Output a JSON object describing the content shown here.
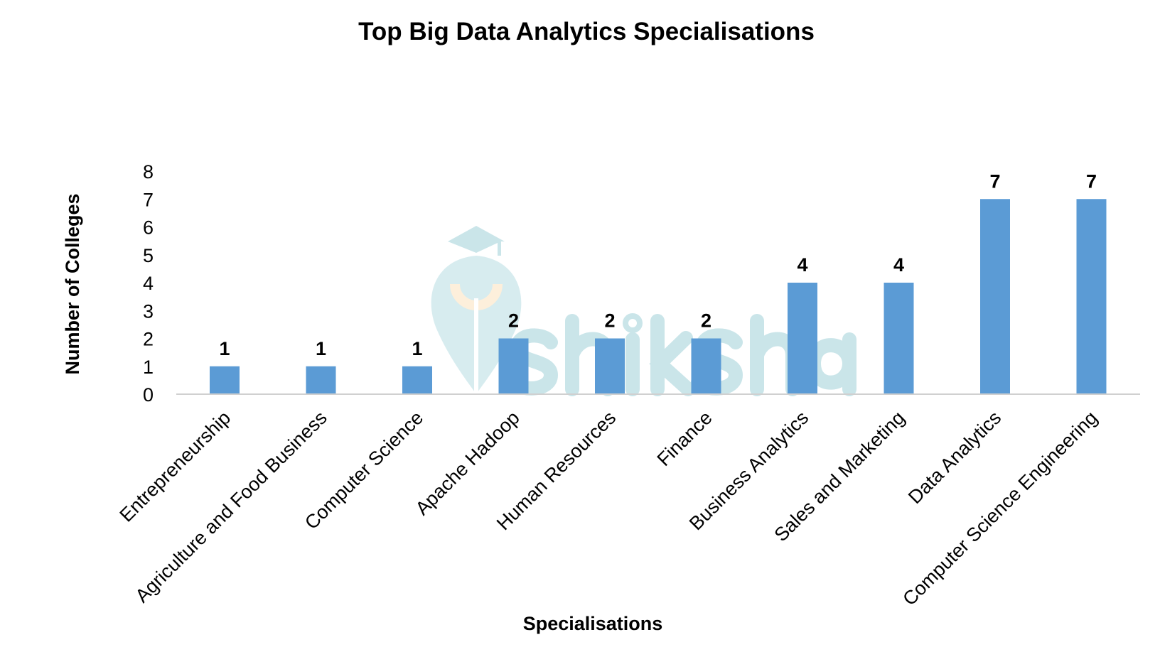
{
  "chart_data": {
    "type": "bar",
    "title": "Top Big Data Analytics Specialisations",
    "xlabel": "Specialisations",
    "ylabel": "Number of Colleges",
    "categories": [
      "Entrepreneurship",
      "Agriculture and Food Business",
      "Computer Science",
      "Apache Hadoop",
      "Human Resources",
      "Finance",
      "Business Analytics",
      "Sales and Marketing",
      "Data Analytics",
      "Computer Science Engineering"
    ],
    "values": [
      1,
      1,
      1,
      2,
      2,
      2,
      4,
      4,
      7,
      7
    ],
    "ylim": [
      0,
      8
    ],
    "yticks": [
      0,
      1,
      2,
      3,
      4,
      5,
      6,
      7,
      8
    ],
    "grid": false,
    "data_labels": true,
    "bar_color": "#5b9bd5",
    "watermark": "shiksha"
  }
}
